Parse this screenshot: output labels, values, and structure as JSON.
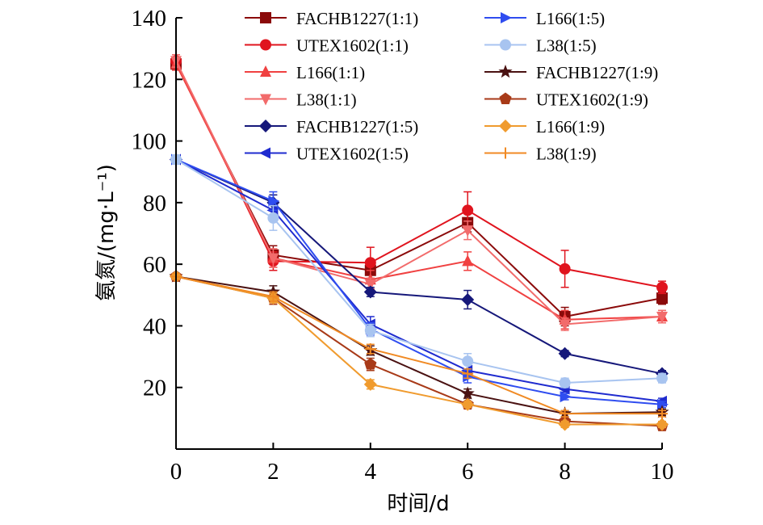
{
  "chart_data": {
    "type": "line",
    "xlabel": "时间/d",
    "ylabel": "氨氮/(mg·L⁻¹)",
    "xlim": [
      0,
      10
    ],
    "ylim": [
      0,
      140
    ],
    "xticks": [
      "0",
      "2",
      "4",
      "6",
      "8",
      "10"
    ],
    "yticks": [
      "20",
      "40",
      "60",
      "80",
      "100",
      "120",
      "140"
    ],
    "grid": false,
    "legend_position": "top-right",
    "x": [
      0,
      2,
      4,
      6,
      8,
      10
    ],
    "series": [
      {
        "name": "FACHB1227(1:1)",
        "color": "#8b0a0a",
        "marker": "square",
        "values": [
          125,
          63,
          58,
          73.5,
          43,
          49
        ],
        "errors": [
          2,
          3,
          3,
          3,
          3,
          2
        ]
      },
      {
        "name": "UTEX1602(1:1)",
        "color": "#e0141e",
        "marker": "circle",
        "values": [
          126,
          61,
          60.5,
          77.5,
          58.5,
          52.5
        ],
        "errors": [
          2,
          3,
          5,
          6,
          6,
          2
        ]
      },
      {
        "name": "L166(1:1)",
        "color": "#f04141",
        "marker": "triangle-up",
        "values": [
          125,
          62,
          55,
          61,
          42,
          43
        ],
        "errors": [
          2,
          3,
          3,
          3,
          3,
          2
        ]
      },
      {
        "name": "L38(1:1)",
        "color": "#f26b6b",
        "marker": "triangle-down",
        "values": [
          126,
          62,
          53.5,
          71,
          40.5,
          43
        ],
        "errors": [
          2,
          3,
          2,
          3,
          2,
          2
        ]
      },
      {
        "name": "FACHB1227(1:5)",
        "color": "#16187a",
        "marker": "diamond",
        "values": [
          94,
          80,
          51,
          48.5,
          31,
          24.5
        ],
        "errors": [
          1.5,
          2.5,
          1.5,
          3,
          1,
          1
        ]
      },
      {
        "name": "UTEX1602(1:5)",
        "color": "#1f2bcf",
        "marker": "triangle-left",
        "values": [
          94,
          77.5,
          40.5,
          25.5,
          19.5,
          15.5
        ],
        "errors": [
          1.5,
          3,
          2.5,
          2,
          1,
          1
        ]
      },
      {
        "name": "L166(1:5)",
        "color": "#2f4df0",
        "marker": "triangle-right",
        "values": [
          94,
          80.5,
          39,
          23.5,
          17,
          14.5
        ],
        "errors": [
          1.5,
          3,
          2,
          2,
          1,
          1
        ]
      },
      {
        "name": "L38(1:5)",
        "color": "#a8c4f0",
        "marker": "circle",
        "values": [
          94,
          75,
          38.5,
          28.5,
          21.5,
          23
        ],
        "errors": [
          1.5,
          4,
          2,
          2.5,
          1.5,
          1.5
        ]
      },
      {
        "name": "FACHB1227(1:9)",
        "color": "#4a1212",
        "marker": "star",
        "values": [
          56,
          51,
          32,
          18,
          11.5,
          12
        ],
        "errors": [
          1,
          2,
          1.5,
          1.5,
          1,
          1
        ]
      },
      {
        "name": "UTEX1602(1:9)",
        "color": "#a83a18",
        "marker": "pentagon",
        "values": [
          56,
          49,
          27.5,
          14.5,
          9,
          7.5
        ],
        "errors": [
          1,
          2,
          2,
          1,
          1,
          1
        ]
      },
      {
        "name": "L166(1:9)",
        "color": "#f09b2e",
        "marker": "diamond",
        "values": [
          56,
          49,
          21,
          14.5,
          8,
          8
        ],
        "errors": [
          1,
          1.5,
          1.5,
          1,
          1,
          1
        ]
      },
      {
        "name": "L38(1:9)",
        "color": "#f08a24",
        "marker": "plus",
        "values": [
          56,
          49.5,
          32.5,
          24.5,
          11.5,
          11.5
        ],
        "errors": [
          1,
          1.5,
          1.5,
          1.5,
          1,
          1
        ]
      }
    ]
  }
}
